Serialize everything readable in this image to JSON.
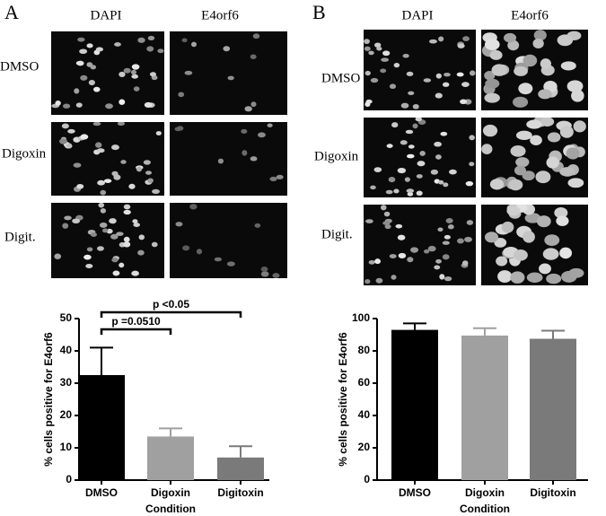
{
  "panels": [
    {
      "label": "A",
      "columns": [
        "DAPI",
        "E4orf6"
      ],
      "rows": [
        "DMSO",
        "Digoxin",
        "Digit."
      ]
    },
    {
      "label": "B",
      "columns": [
        "DAPI",
        "E4orf6"
      ],
      "rows": [
        "DMSO",
        "Digoxin",
        "Digit."
      ]
    }
  ],
  "chart_data": [
    {
      "type": "bar",
      "categories": [
        "DMSO",
        "Digoxin",
        "Digitoxin"
      ],
      "values": [
        32.5,
        13.5,
        7
      ],
      "errors": [
        8.5,
        2.5,
        3.5
      ],
      "colors": [
        "#000000",
        "#a0a0a0",
        "#7a7a7a"
      ],
      "ylabel": "% cells positive for E4orf6",
      "xlabel": "Condition",
      "ylim": [
        0,
        50
      ],
      "yticks": [
        0,
        10,
        20,
        30,
        40,
        50
      ],
      "annotations": [
        "p =0.0510",
        "p <0.05"
      ]
    },
    {
      "type": "bar",
      "categories": [
        "DMSO",
        "Digoxin",
        "Digitoxin"
      ],
      "values": [
        93,
        89.5,
        87.5
      ],
      "errors": [
        4,
        4.5,
        5
      ],
      "colors": [
        "#000000",
        "#a0a0a0",
        "#7a7a7a"
      ],
      "ylabel": "% cells positive for E4orf6",
      "xlabel": "Condition",
      "ylim": [
        0,
        100
      ],
      "yticks": [
        0,
        20,
        40,
        60,
        80,
        100
      ]
    }
  ]
}
